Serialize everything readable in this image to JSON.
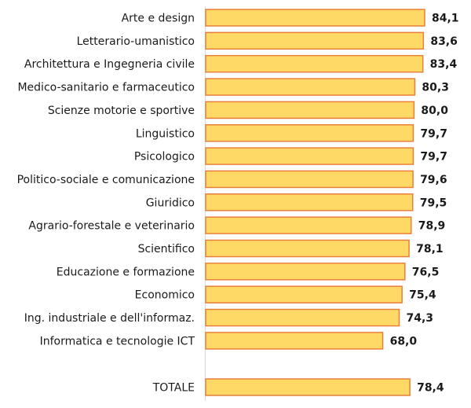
{
  "chart_data": {
    "type": "bar",
    "orientation": "horizontal",
    "categories": [
      "Arte e design",
      "Letterario-umanistico",
      "Architettura e Ingegneria civile",
      "Medico-sanitario e farmaceutico",
      "Scienze motorie e sportive",
      "Linguistico",
      "Psicologico",
      "Politico-sociale e comunicazione",
      "Giuridico",
      "Agrario-forestale e veterinario",
      "Scientifico",
      "Educazione e formazione",
      "Economico",
      "Ing. industriale e dell'informaz.",
      "Informatica e tecnologie ICT"
    ],
    "values": [
      84.1,
      83.6,
      83.4,
      80.3,
      80.0,
      79.7,
      79.7,
      79.6,
      79.5,
      78.9,
      78.1,
      76.5,
      75.4,
      74.3,
      68.0
    ],
    "value_labels": [
      "84,1",
      "83,6",
      "83,4",
      "80,3",
      "80,0",
      "79,7",
      "79,7",
      "79,6",
      "79,5",
      "78,9",
      "78,1",
      "76,5",
      "75,4",
      "74,3",
      "68,0"
    ],
    "total": {
      "label": "TOTALE",
      "value": 78.4,
      "value_label": "78,4"
    },
    "xlim": [
      0,
      84.1
    ],
    "grid": false,
    "colors": {
      "bar_fill": "#FFD966",
      "bar_stroke": "#E8803A",
      "axis": "#d9d9d9"
    }
  }
}
